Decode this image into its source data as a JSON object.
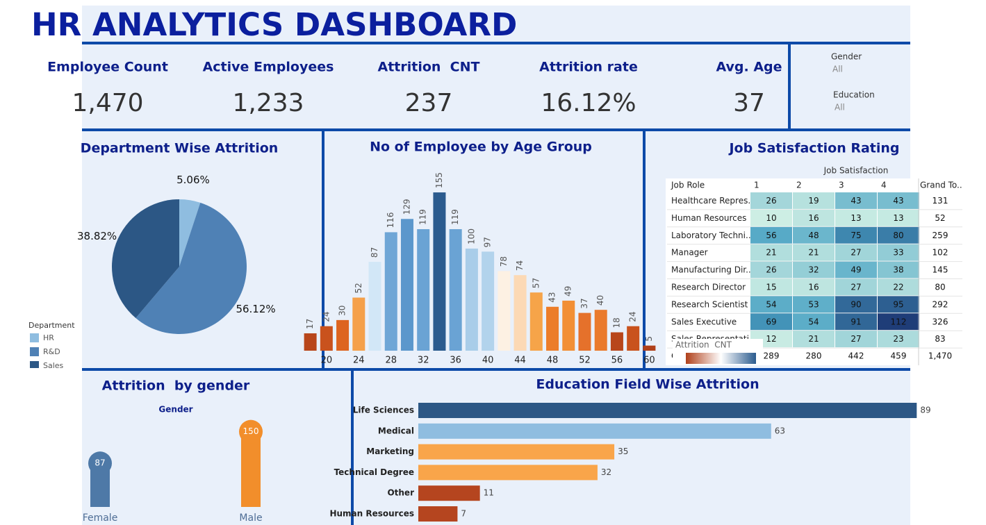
{
  "header": {
    "title": "HR ANALYTICS DASHBOARD"
  },
  "kpis": [
    {
      "label": "Employee Count",
      "value": "1,470"
    },
    {
      "label": "Active Employees",
      "value": "1,233"
    },
    {
      "label": "Attrition  CNT",
      "value": "237"
    },
    {
      "label": "Attrition rate",
      "value": "16.12%"
    },
    {
      "label": "Avg. Age",
      "value": "37"
    }
  ],
  "filters": [
    {
      "label": "Gender",
      "value": "All"
    },
    {
      "label": "Education",
      "value": "All"
    }
  ],
  "chart_data": [
    {
      "type": "pie",
      "title": "Department Wise Attrition",
      "categories": [
        "HR",
        "R&D",
        "Sales"
      ],
      "values": [
        5.06,
        56.12,
        38.82
      ],
      "value_labels": [
        "5.06%",
        "56.12%",
        "38.82%"
      ],
      "colors": [
        "#8fbde0",
        "#4f81b5",
        "#2c5785"
      ],
      "legend_title": "Department"
    },
    {
      "type": "bar",
      "title": "No of Employee by Age Group",
      "x": [
        18,
        20,
        22,
        24,
        26,
        28,
        30,
        32,
        34,
        36,
        38,
        40,
        42,
        44,
        46,
        48,
        50,
        52,
        54,
        56,
        58,
        60
      ],
      "values": [
        17,
        24,
        30,
        52,
        87,
        116,
        129,
        119,
        155,
        119,
        100,
        97,
        78,
        74,
        57,
        43,
        49,
        37,
        40,
        18,
        24,
        5
      ],
      "colors": [
        "#b8461b",
        "#c9521d",
        "#dd6420",
        "#f5a04a",
        "#d2e7f7",
        "#6fa6d6",
        "#5b97cc",
        "#6aa3d4",
        "#2b5b8e",
        "#6aa3d4",
        "#a9cde9",
        "#b2d3ec",
        "#fdf1e3",
        "#fcd9b5",
        "#f6a449",
        "#ec7d2a",
        "#f28f35",
        "#e5712b",
        "#ea7a2c",
        "#b8461b",
        "#c9521d",
        "#b0401a"
      ],
      "xlim": [
        17,
        61
      ],
      "xticks": [
        20,
        24,
        28,
        32,
        36,
        40,
        44,
        48,
        52,
        56,
        60
      ],
      "ylim": [
        0,
        170
      ],
      "color_legend": {
        "title": "Attrition  CNT",
        "colors": [
          "#b0401a",
          "#ffffff",
          "#2b5b8e"
        ]
      }
    },
    {
      "type": "heatmap",
      "title": "Job Satisfaction Rating",
      "column_title": "Job Satisfaction",
      "row_title": "Job Role",
      "columns": [
        "1",
        "2",
        "3",
        "4"
      ],
      "total_label": "Grand To..",
      "total_row_label": "Grand Total",
      "rows": [
        "Healthcare Repres..",
        "Human Resources",
        "Laboratory Techni..",
        "Manager",
        "Manufacturing Dir..",
        "Research Director",
        "Research Scientist",
        "Sales Executive",
        "Sales Representati.."
      ],
      "values": [
        [
          26,
          19,
          43,
          43
        ],
        [
          10,
          16,
          13,
          13
        ],
        [
          56,
          48,
          75,
          80
        ],
        [
          21,
          21,
          27,
          33
        ],
        [
          26,
          32,
          49,
          38
        ],
        [
          15,
          16,
          27,
          22
        ],
        [
          54,
          53,
          90,
          95
        ],
        [
          69,
          54,
          91,
          112
        ],
        [
          12,
          21,
          27,
          23
        ]
      ],
      "row_totals": [
        131,
        52,
        259,
        102,
        145,
        80,
        292,
        326,
        83
      ],
      "column_totals": [
        289,
        280,
        442,
        459
      ],
      "grand_total": "1,470",
      "colors": [
        "#cdeee4",
        "#4aa3c4",
        "#1f3d78"
      ]
    },
    {
      "type": "lollipop",
      "title": "Attrition  by gender",
      "subtitle": "Gender",
      "categories": [
        "Female",
        "Male"
      ],
      "values": [
        87,
        150
      ],
      "colors": [
        "#4e79a7",
        "#f28e2b"
      ],
      "ylim": [
        0,
        180
      ]
    },
    {
      "type": "hbar",
      "title": "Education Field Wise Attrition",
      "categories": [
        "Life Sciences",
        "Medical",
        "Marketing",
        "Technical Degree",
        "Other",
        "Human Resources"
      ],
      "values": [
        89,
        63,
        35,
        32,
        11,
        7
      ],
      "colors": [
        "#2c5785",
        "#8fbde0",
        "#f9a54a",
        "#f9a54a",
        "#b5451f",
        "#b5451f"
      ],
      "xlim": [
        0,
        92
      ]
    }
  ]
}
